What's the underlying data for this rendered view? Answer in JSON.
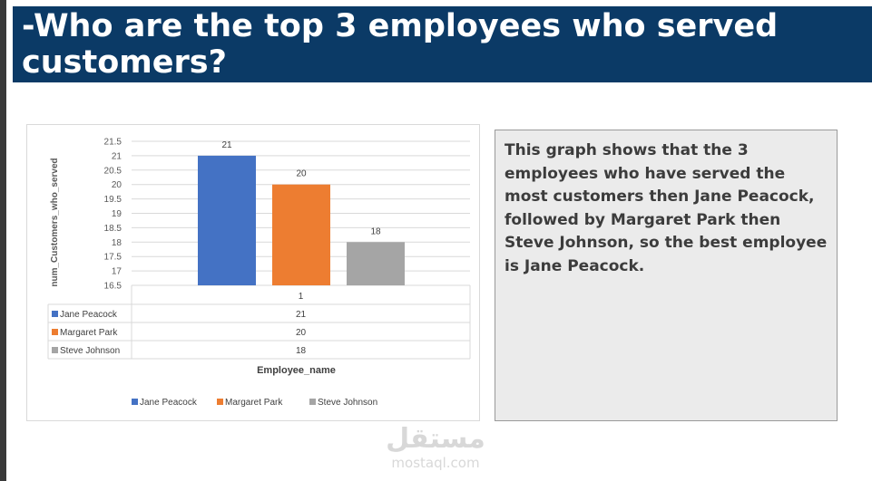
{
  "slide": {
    "title": "-Who are the top 3 employees who served customers?",
    "description": "This graph shows that the 3 employees who have served the most customers then Jane Peacock, followed by Margaret Park then Steve Johnson, so the best employee is Jane Peacock."
  },
  "watermark": {
    "logo": "مستقل",
    "url": "mostaql.com"
  },
  "chart_data": {
    "type": "bar",
    "categories": [
      "1"
    ],
    "series": [
      {
        "name": "Jane Peacock",
        "values": [
          21
        ],
        "color": "#4472c4"
      },
      {
        "name": "Margaret Park",
        "values": [
          20
        ],
        "color": "#ed7d31"
      },
      {
        "name": "Steve Johnson",
        "values": [
          18
        ],
        "color": "#a5a5a5"
      }
    ],
    "yticks": [
      "16.5",
      "17",
      "17.5",
      "18",
      "18.5",
      "19",
      "19.5",
      "20",
      "20.5",
      "21",
      "21.5"
    ],
    "ylim": [
      16.5,
      21.5
    ],
    "ylabel": "num_Customers_who_served",
    "xlabel": "Employee_name",
    "grid": true,
    "legend": "bottom",
    "data_table": true
  }
}
